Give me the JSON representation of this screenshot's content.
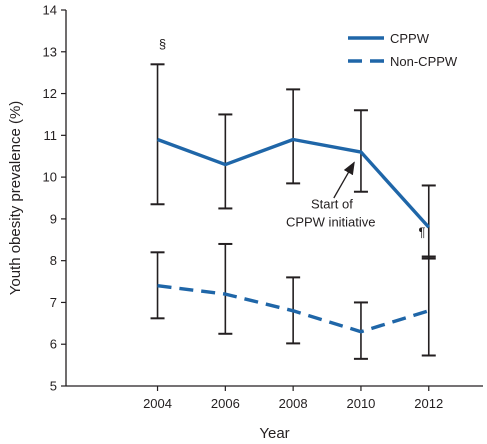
{
  "chart_data": {
    "type": "line",
    "xlabel": "Year",
    "ylabel": "Youth obesity prevalence (%)",
    "x": [
      2004,
      2006,
      2008,
      2010,
      2012
    ],
    "xlim": [
      2001.3,
      2013.6
    ],
    "ylim": [
      5,
      14
    ],
    "yticks": [
      5,
      6,
      7,
      8,
      9,
      10,
      11,
      12,
      13,
      14
    ],
    "grid": false,
    "legend_position": "top-right",
    "series": [
      {
        "name": "CPPW",
        "style": "solid",
        "color": "#1f66a8",
        "values": [
          10.9,
          10.3,
          10.9,
          10.6,
          8.8
        ],
        "ci_lower": [
          9.35,
          9.25,
          9.85,
          9.65,
          8.05
        ],
        "ci_upper": [
          12.7,
          11.5,
          12.1,
          11.6,
          9.8
        ]
      },
      {
        "name": "Non-CPPW",
        "style": "dashed",
        "color": "#1f66a8",
        "values": [
          7.4,
          7.2,
          6.8,
          6.3,
          6.8
        ],
        "ci_lower": [
          6.62,
          6.25,
          6.02,
          5.65,
          5.73
        ],
        "ci_upper": [
          8.2,
          8.4,
          7.6,
          7.0,
          8.1
        ]
      }
    ],
    "annotations": [
      {
        "text": "§",
        "x": 2004,
        "y": 13.2
      },
      {
        "text": "¶",
        "x": 2011.8,
        "y": 8.7
      },
      {
        "lines": [
          "Start of",
          "CPPW initiative"
        ],
        "x": 2010,
        "y": 10.3,
        "arrow_to": [
          2009.8,
          10.35
        ],
        "arrow_from": [
          2009.2,
          9.5
        ]
      }
    ]
  }
}
